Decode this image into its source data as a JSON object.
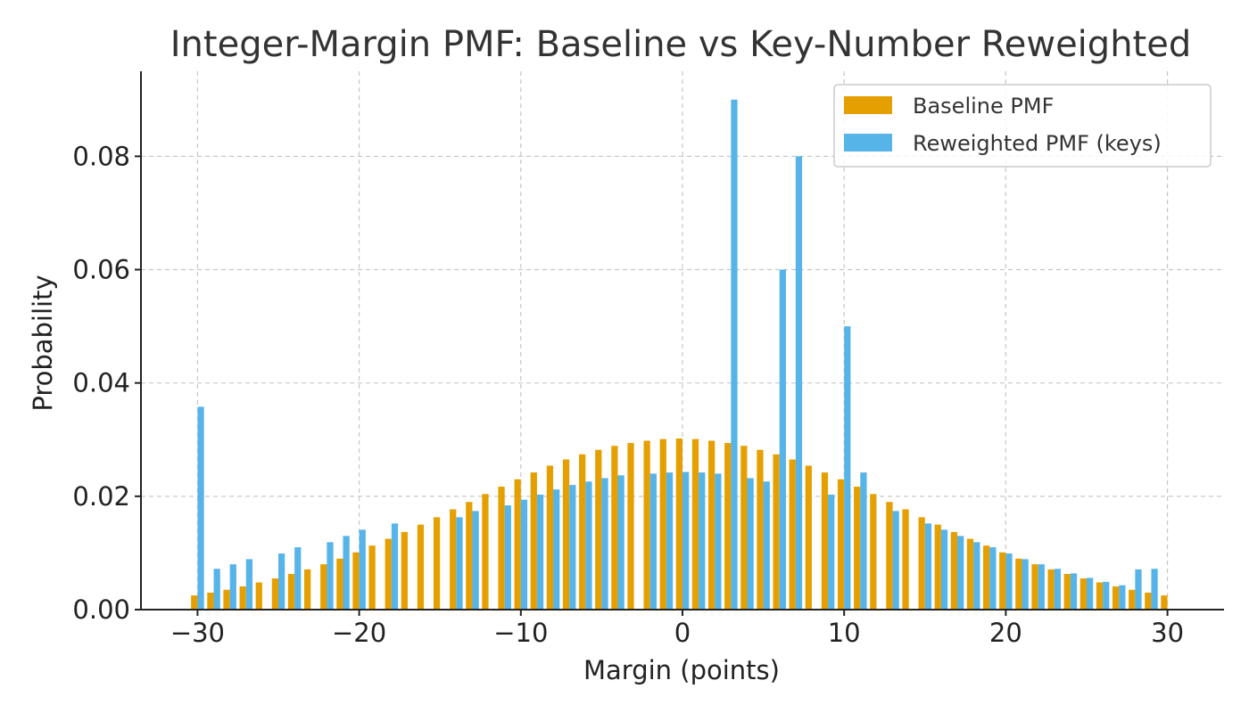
{
  "chart_data": {
    "type": "bar",
    "title": "Integer-Margin PMF: Baseline vs Key-Number Reweighted",
    "xlabel": "Margin (points)",
    "ylabel": "Probability",
    "xlim": [
      -33.5,
      33.5
    ],
    "ylim": [
      0,
      0.095
    ],
    "xticks": [
      -30,
      -20,
      -10,
      0,
      10,
      20,
      30
    ],
    "xtick_labels": [
      "−30",
      "−20",
      "−10",
      "0",
      "10",
      "20",
      "30"
    ],
    "yticks": [
      0,
      0.02,
      0.04,
      0.06,
      0.08
    ],
    "ytick_labels": [
      "0.00",
      "0.02",
      "0.04",
      "0.06",
      "0.08"
    ],
    "grid": true,
    "legend_position": "top-right",
    "x": [
      -30,
      -29,
      -28,
      -27,
      -26,
      -25,
      -24,
      -23,
      -22,
      -21,
      -20,
      -19,
      -18,
      -17,
      -16,
      -15,
      -14,
      -13,
      -12,
      -11,
      -10,
      -9,
      -8,
      -7,
      -6,
      -5,
      -4,
      -3,
      -2,
      -1,
      0,
      1,
      2,
      3,
      4,
      5,
      6,
      7,
      8,
      9,
      10,
      11,
      12,
      13,
      14,
      15,
      16,
      17,
      18,
      19,
      20,
      21,
      22,
      23,
      24,
      25,
      26,
      27,
      28,
      29,
      30
    ],
    "series": [
      {
        "name": "Baseline PMF",
        "color": "#E69F00",
        "offset": -0.2,
        "values": [
          0.0025,
          0.003,
          0.0035,
          0.0041,
          0.0048,
          0.0055,
          0.0063,
          0.0071,
          0.008,
          0.009,
          0.0101,
          0.0113,
          0.0125,
          0.0137,
          0.015,
          0.0163,
          0.0177,
          0.019,
          0.0204,
          0.0217,
          0.023,
          0.0242,
          0.0254,
          0.0265,
          0.0274,
          0.0282,
          0.0289,
          0.0294,
          0.0298,
          0.0301,
          0.0302,
          0.0301,
          0.0298,
          0.0294,
          0.0289,
          0.0282,
          0.0274,
          0.0265,
          0.0254,
          0.0242,
          0.023,
          0.0217,
          0.0204,
          0.019,
          0.0177,
          0.0163,
          0.015,
          0.0137,
          0.0125,
          0.0113,
          0.0101,
          0.009,
          0.008,
          0.0071,
          0.0063,
          0.0055,
          0.0048,
          0.0041,
          0.0035,
          0.003,
          0.0025
        ]
      },
      {
        "name": "Reweighted PMF (keys)",
        "color": "#56B4E9",
        "offset": 0.2,
        "values": [
          0.0358,
          0.0072,
          0.008,
          0.0089,
          null,
          0.0099,
          0.011,
          null,
          0.0119,
          0.013,
          0.0141,
          null,
          0.0152,
          null,
          null,
          null,
          0.0163,
          0.0174,
          null,
          0.0184,
          0.0194,
          0.0203,
          0.0212,
          0.022,
          0.0226,
          0.0232,
          0.0237,
          null,
          0.024,
          0.0242,
          0.0243,
          0.0242,
          0.024,
          0.09,
          0.0232,
          0.0226,
          0.06,
          0.08,
          null,
          0.0203,
          0.05,
          0.0242,
          null,
          0.0174,
          null,
          0.0152,
          0.0141,
          0.013,
          0.0119,
          0.011,
          0.0099,
          0.0089,
          0.008,
          0.0072,
          0.0064,
          0.0056,
          0.0049,
          0.0043,
          0.0071,
          0.0072,
          null
        ]
      }
    ]
  }
}
